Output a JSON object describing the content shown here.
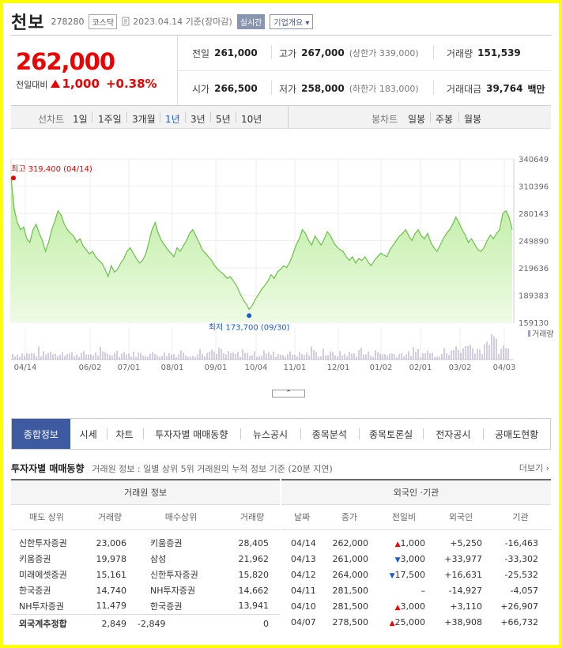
{
  "stock": {
    "name": "천보",
    "code": "278280",
    "market": "코스닥",
    "date": "2023.04.14 기준(장마감)",
    "live_label": "실시간",
    "corp_label": "기업개요",
    "price": "262,000",
    "change_label": "전일대비",
    "change_value": "1,000",
    "change_pct": "+0.38%"
  },
  "summary": {
    "prev_close": {
      "label": "전일",
      "value": "261,000"
    },
    "high": {
      "label": "고가",
      "value": "267,000",
      "sub": "(상한가 339,000)"
    },
    "volume": {
      "label": "거래량",
      "value": "151,539"
    },
    "open": {
      "label": "시가",
      "value": "266,500"
    },
    "low": {
      "label": "저가",
      "value": "258,000",
      "sub": "(하한가 183,000)"
    },
    "amount": {
      "label": "거래대금",
      "value": "39,764",
      "unit": "백만"
    }
  },
  "periods": {
    "line_label": "선차트",
    "line_items": [
      "1일",
      "1주일",
      "3개월",
      "1년",
      "3년",
      "5년",
      "10년"
    ],
    "line_active": "1년",
    "candle_label": "봉차트",
    "candle_items": [
      "일봉",
      "주봉",
      "월봉"
    ]
  },
  "chart_data": {
    "type": "area",
    "y_ticks": [
      340649,
      310396,
      280143,
      249890,
      219636,
      189383,
      159130
    ],
    "ylim": [
      159130,
      340649
    ],
    "x_ticks": [
      "04/14",
      "06/02",
      "07/01",
      "08/01",
      "09/01",
      "10/04",
      "11/01",
      "12/01",
      "01/02",
      "02/01",
      "03/02",
      "04/03"
    ],
    "high_label": "최고 319,400 (04/14)",
    "high_value": 319400,
    "low_label": "최저 173,700 (09/30)",
    "low_value": 173700,
    "volume_label": "거래량",
    "values": [
      319400,
      285000,
      270000,
      262000,
      265000,
      252000,
      248000,
      262000,
      268000,
      258000,
      250000,
      238000,
      248000,
      262000,
      272000,
      283000,
      278000,
      268000,
      262000,
      258000,
      255000,
      248000,
      252000,
      244000,
      240000,
      235000,
      238000,
      232000,
      228000,
      225000,
      218000,
      210000,
      222000,
      215000,
      218000,
      225000,
      230000,
      238000,
      242000,
      236000,
      230000,
      225000,
      228000,
      235000,
      248000,
      262000,
      270000,
      258000,
      250000,
      245000,
      240000,
      236000,
      232000,
      242000,
      238000,
      244000,
      250000,
      258000,
      262000,
      255000,
      248000,
      240000,
      236000,
      232000,
      228000,
      222000,
      218000,
      215000,
      212000,
      208000,
      210000,
      205000,
      200000,
      192000,
      185000,
      180000,
      173700,
      178000,
      185000,
      190000,
      196000,
      200000,
      205000,
      212000,
      208000,
      215000,
      218000,
      222000,
      220000,
      226000,
      235000,
      245000,
      252000,
      262000,
      258000,
      250000,
      245000,
      255000,
      250000,
      245000,
      252000,
      260000,
      255000,
      248000,
      243000,
      240000,
      238000,
      232000,
      228000,
      232000,
      225000,
      230000,
      228000,
      232000,
      226000,
      222000,
      228000,
      232000,
      236000,
      234000,
      232000,
      240000,
      245000,
      250000,
      255000,
      258000,
      262000,
      255000,
      250000,
      258000,
      262000,
      255000,
      252000,
      258000,
      248000,
      242000,
      238000,
      245000,
      252000,
      258000,
      262000,
      268000,
      276000,
      270000,
      262000,
      256000,
      248000,
      252000,
      246000,
      240000,
      238000,
      242000,
      250000,
      256000,
      252000,
      258000,
      262000,
      280000,
      283000,
      276000,
      262000
    ]
  },
  "tabs": [
    "종합정보",
    "시세",
    "차트",
    "투자자별 매매동향",
    "뉴스공시",
    "종목분석",
    "종목토론실",
    "전자공시",
    "공매도현황"
  ],
  "trading": {
    "title": "투자자별 매매동향",
    "desc": "거래원 정보 : 일별 상위 5위 거래원의 누적 정보 기준 (20분 지연)",
    "more": "더보기",
    "left_header": "거래원 정보",
    "left_cols": [
      "매도 상위",
      "거래량",
      "매수상위",
      "거래량"
    ],
    "left_rows": [
      [
        "신한투자증권",
        "23,006",
        "키움증권",
        "28,405"
      ],
      [
        "키움증권",
        "19,978",
        "삼성",
        "21,962"
      ],
      [
        "미래에셋증권",
        "15,161",
        "신한투자증권",
        "15,820"
      ],
      [
        "한국증권",
        "14,740",
        "NH투자증권",
        "14,662"
      ],
      [
        "NH투자증권",
        "11,479",
        "한국증권",
        "13,941"
      ]
    ],
    "foreign_total": {
      "label": "외국계추정합",
      "sell": "2,849",
      "buy": "-2,849",
      "net": "0"
    },
    "right_header": "외국인 ·기관",
    "right_cols": [
      "날짜",
      "종가",
      "전일비",
      "외국인",
      "기관"
    ],
    "right_rows": [
      {
        "date": "04/14",
        "close": "262,000",
        "dir": "up",
        "diff": "1,000",
        "foreign": "+5,250",
        "inst": "-16,463"
      },
      {
        "date": "04/13",
        "close": "261,000",
        "dir": "down",
        "diff": "3,000",
        "foreign": "+33,977",
        "inst": "-33,302"
      },
      {
        "date": "04/12",
        "close": "264,000",
        "dir": "down",
        "diff": "17,500",
        "foreign": "+16,631",
        "inst": "-25,532"
      },
      {
        "date": "04/11",
        "close": "281,500",
        "dir": "none",
        "diff": "–",
        "foreign": "-14,927",
        "inst": "-4,057"
      },
      {
        "date": "04/10",
        "close": "281,500",
        "dir": "up",
        "diff": "3,000",
        "foreign": "+3,110",
        "inst": "+26,907"
      },
      {
        "date": "04/07",
        "close": "278,500",
        "dir": "up",
        "diff": "25,000",
        "foreign": "+38,908",
        "inst": "+66,732"
      }
    ]
  }
}
